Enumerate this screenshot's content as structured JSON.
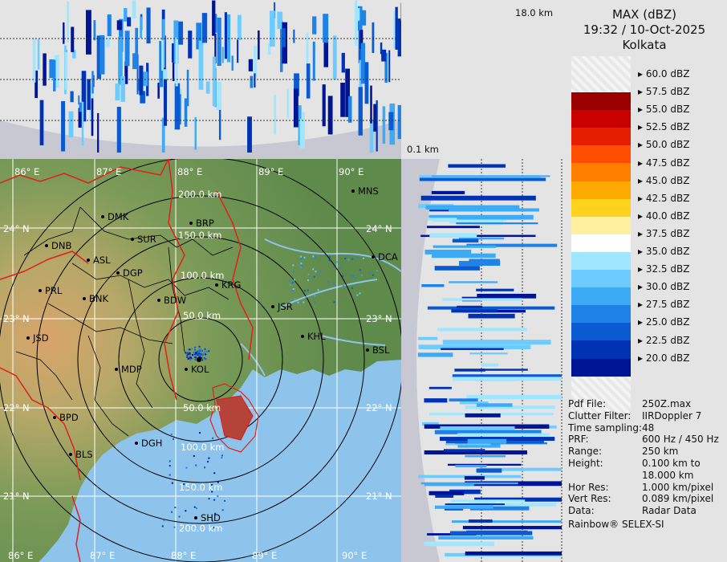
{
  "legend": {
    "title": "MAX (dBZ)",
    "datetime": "19:32 / 10-Oct-2025",
    "station": "Kolkata",
    "scale": [
      {
        "label": "60.0 dBZ",
        "color": "#f2f2f2"
      },
      {
        "label": "57.5 dBZ",
        "color": "#9a0000"
      },
      {
        "label": "55.0 dBZ",
        "color": "#c80000"
      },
      {
        "label": "52.5 dBZ",
        "color": "#e61e00"
      },
      {
        "label": "50.0 dBZ",
        "color": "#ff4e00"
      },
      {
        "label": "47.5 dBZ",
        "color": "#ff7e00"
      },
      {
        "label": "45.0 dBZ",
        "color": "#ffaa00"
      },
      {
        "label": "42.5 dBZ",
        "color": "#ffd21e"
      },
      {
        "label": "40.0 dBZ",
        "color": "#fff0a0"
      },
      {
        "label": "37.5 dBZ",
        "color": "#ffffff"
      },
      {
        "label": "35.0 dBZ",
        "color": "#a0e6ff"
      },
      {
        "label": "32.5 dBZ",
        "color": "#6ecbff"
      },
      {
        "label": "30.0 dBZ",
        "color": "#3caaf5"
      },
      {
        "label": "27.5 dBZ",
        "color": "#1e82e6"
      },
      {
        "label": "25.0 dBZ",
        "color": "#0a5ad2"
      },
      {
        "label": "22.5 dBZ",
        "color": "#0032b4"
      },
      {
        "label": "20.0 dBZ",
        "color": "#001496"
      }
    ]
  },
  "info": [
    {
      "key": "Pdf File:",
      "value": "250Z.max"
    },
    {
      "key": "Clutter Filter:",
      "value": "IIRDoppler 7"
    },
    {
      "key": "Time sampling:",
      "value": "48"
    },
    {
      "key": "PRF:",
      "value": "600 Hz / 450 Hz"
    },
    {
      "key": "Range:",
      "value": "250 km"
    },
    {
      "key": "Height:",
      "value": "0.100 km to"
    },
    {
      "key": "",
      "value": "18.000 km"
    },
    {
      "key": "Hor Res:",
      "value": "1.000 km/pixel"
    },
    {
      "key": "Vert Res:",
      "value": "0.089 km/pixel"
    },
    {
      "key": "Data:",
      "value": "Radar Data"
    }
  ],
  "footer": "Rainbow® SELEX-SI",
  "height_labels": {
    "max": "18.0 km",
    "min": "0.1 km"
  },
  "map": {
    "lon_labels": [
      "86° E",
      "87° E",
      "88° E",
      "89° E",
      "90° E"
    ],
    "lat_labels": [
      "24° N",
      "23° N",
      "22° N",
      "21° N"
    ],
    "range_rings": [
      "50.0 km",
      "100.0 km",
      "150.0 km",
      "200.0 km"
    ],
    "stations": [
      "DMK",
      "BRP",
      "MNS",
      "DNB",
      "SUR",
      "ASL",
      "DGP",
      "KRG",
      "DCA",
      "PRL",
      "BNK",
      "BDW",
      "JSR",
      "JSD",
      "KHL",
      "BSL",
      "KOL",
      "MDP",
      "BPD",
      "DGH",
      "BLS",
      "SHD"
    ]
  },
  "colors": {
    "land": "#6e9a55",
    "sea": "#8ec4ec",
    "border": "#e0201c",
    "grid": "#ffffff",
    "ring": "#000000",
    "panel_bg": "#e4e4e4"
  }
}
